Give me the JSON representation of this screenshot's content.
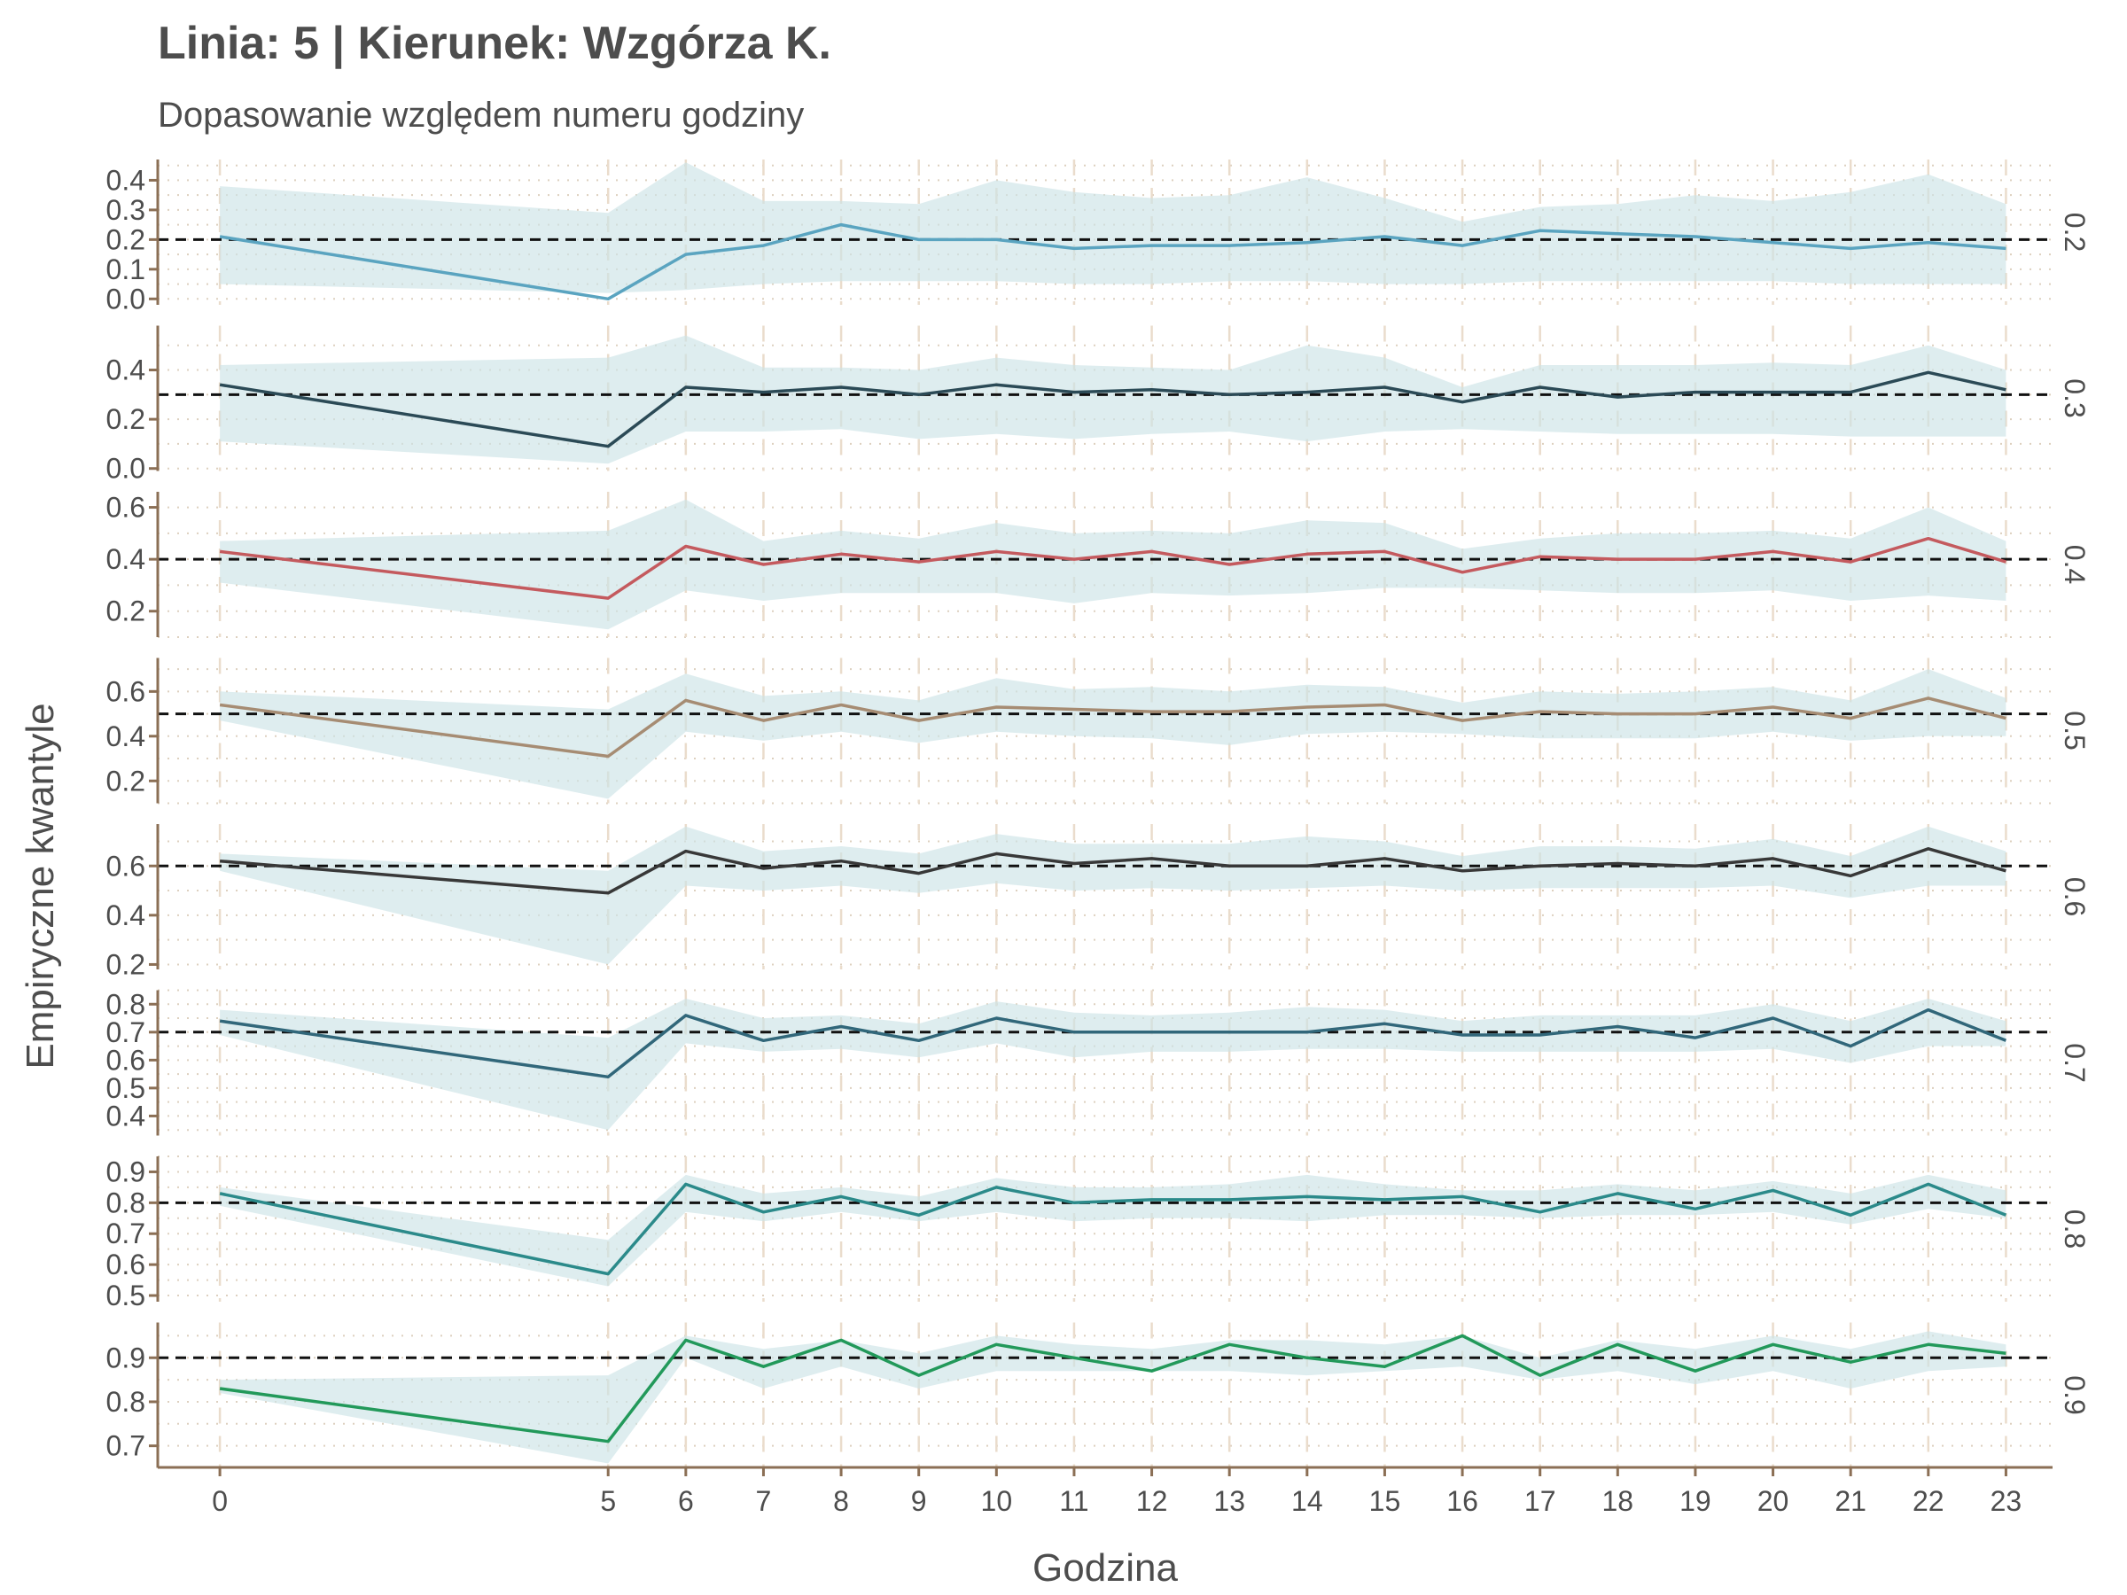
{
  "chart_data": {
    "type": "line",
    "title": "Linia: 5 | Kierunek: Wzgórza K.",
    "subtitle": "Dopasowanie względem numeru godziny",
    "xlabel": "Godzina",
    "ylabel": "Empiryczne kwantyle",
    "x": [
      0,
      5,
      6,
      7,
      8,
      9,
      10,
      11,
      12,
      13,
      14,
      15,
      16,
      17,
      18,
      19,
      20,
      21,
      22,
      23
    ],
    "x_ticks": [
      "0",
      "5",
      "6",
      "7",
      "8",
      "9",
      "10",
      "11",
      "12",
      "13",
      "14",
      "15",
      "16",
      "17",
      "18",
      "19",
      "20",
      "21",
      "22",
      "23"
    ],
    "xlim": [
      -0.8,
      23.6
    ],
    "grid": "dashed x, dotted y",
    "legend": "none",
    "facets": [
      {
        "strip": "0.2",
        "reference": 0.2,
        "color": "#5aa4c0",
        "ylim": [
          -0.02,
          0.47
        ],
        "y_ticks": [
          0.0,
          0.1,
          0.2,
          0.3,
          0.4
        ],
        "y_tick_labels": [
          "0.0",
          "0.1",
          "0.2",
          "0.3",
          "0.4"
        ],
        "values": [
          0.21,
          0.0,
          0.15,
          0.18,
          0.25,
          0.2,
          0.2,
          0.17,
          0.18,
          0.18,
          0.19,
          0.21,
          0.18,
          0.23,
          0.22,
          0.21,
          0.19,
          0.17,
          0.19,
          0.17
        ],
        "lower": [
          0.05,
          0.02,
          0.03,
          0.05,
          0.06,
          0.06,
          0.06,
          0.05,
          0.05,
          0.06,
          0.06,
          0.05,
          0.05,
          0.06,
          0.06,
          0.06,
          0.06,
          0.05,
          0.05,
          0.05
        ],
        "upper": [
          0.38,
          0.29,
          0.46,
          0.33,
          0.33,
          0.32,
          0.4,
          0.36,
          0.34,
          0.35,
          0.41,
          0.34,
          0.26,
          0.31,
          0.32,
          0.35,
          0.33,
          0.36,
          0.42,
          0.32
        ]
      },
      {
        "strip": "0.3",
        "reference": 0.3,
        "color": "#2b4a56",
        "ylim": [
          -0.01,
          0.58
        ],
        "y_ticks": [
          0.0,
          0.2,
          0.4
        ],
        "y_tick_labels": [
          "0.0",
          "0.2",
          "0.4"
        ],
        "values": [
          0.34,
          0.09,
          0.33,
          0.31,
          0.33,
          0.3,
          0.34,
          0.31,
          0.32,
          0.3,
          0.31,
          0.33,
          0.27,
          0.33,
          0.29,
          0.31,
          0.31,
          0.31,
          0.39,
          0.32
        ],
        "lower": [
          0.11,
          0.02,
          0.15,
          0.15,
          0.16,
          0.12,
          0.14,
          0.12,
          0.14,
          0.15,
          0.11,
          0.15,
          0.16,
          0.15,
          0.14,
          0.14,
          0.14,
          0.13,
          0.13,
          0.13
        ],
        "upper": [
          0.42,
          0.45,
          0.54,
          0.41,
          0.41,
          0.4,
          0.45,
          0.42,
          0.41,
          0.4,
          0.5,
          0.45,
          0.33,
          0.42,
          0.42,
          0.42,
          0.43,
          0.42,
          0.5,
          0.4
        ]
      },
      {
        "strip": "0.4",
        "reference": 0.4,
        "color": "#c45a5e",
        "ylim": [
          0.1,
          0.66
        ],
        "y_ticks": [
          0.2,
          0.4,
          0.6
        ],
        "y_tick_labels": [
          "0.2",
          "0.4",
          "0.6"
        ],
        "values": [
          0.43,
          0.25,
          0.45,
          0.38,
          0.42,
          0.39,
          0.43,
          0.4,
          0.43,
          0.38,
          0.42,
          0.43,
          0.35,
          0.41,
          0.4,
          0.4,
          0.43,
          0.39,
          0.48,
          0.39
        ],
        "lower": [
          0.31,
          0.13,
          0.28,
          0.24,
          0.27,
          0.27,
          0.27,
          0.23,
          0.27,
          0.26,
          0.27,
          0.29,
          0.29,
          0.28,
          0.27,
          0.27,
          0.28,
          0.24,
          0.26,
          0.24
        ],
        "upper": [
          0.47,
          0.51,
          0.63,
          0.47,
          0.51,
          0.48,
          0.54,
          0.5,
          0.51,
          0.5,
          0.55,
          0.54,
          0.44,
          0.48,
          0.5,
          0.5,
          0.51,
          0.48,
          0.6,
          0.47
        ]
      },
      {
        "strip": "0.5",
        "reference": 0.5,
        "color": "#a68c73",
        "ylim": [
          0.1,
          0.75
        ],
        "y_ticks": [
          0.2,
          0.4,
          0.6
        ],
        "y_tick_labels": [
          "0.2",
          "0.4",
          "0.6"
        ],
        "values": [
          0.54,
          0.31,
          0.56,
          0.47,
          0.54,
          0.47,
          0.53,
          0.52,
          0.51,
          0.51,
          0.53,
          0.54,
          0.47,
          0.51,
          0.5,
          0.5,
          0.53,
          0.48,
          0.57,
          0.48
        ],
        "lower": [
          0.47,
          0.12,
          0.42,
          0.38,
          0.42,
          0.37,
          0.42,
          0.4,
          0.39,
          0.36,
          0.41,
          0.42,
          0.41,
          0.39,
          0.39,
          0.39,
          0.42,
          0.38,
          0.4,
          0.4
        ],
        "upper": [
          0.6,
          0.52,
          0.68,
          0.58,
          0.6,
          0.56,
          0.66,
          0.61,
          0.62,
          0.6,
          0.63,
          0.62,
          0.55,
          0.6,
          0.59,
          0.6,
          0.62,
          0.56,
          0.7,
          0.57
        ]
      },
      {
        "strip": "0.6",
        "reference": 0.6,
        "color": "#383838",
        "ylim": [
          0.18,
          0.77
        ],
        "y_ticks": [
          0.2,
          0.4,
          0.6
        ],
        "y_tick_labels": [
          "0.2",
          "0.4",
          "0.6"
        ],
        "values": [
          0.62,
          0.49,
          0.66,
          0.59,
          0.62,
          0.57,
          0.65,
          0.61,
          0.63,
          0.6,
          0.6,
          0.63,
          0.58,
          0.6,
          0.61,
          0.6,
          0.63,
          0.56,
          0.67,
          0.58
        ],
        "lower": [
          0.58,
          0.2,
          0.52,
          0.5,
          0.52,
          0.49,
          0.53,
          0.5,
          0.51,
          0.5,
          0.51,
          0.52,
          0.5,
          0.51,
          0.51,
          0.51,
          0.52,
          0.47,
          0.52,
          0.52
        ],
        "upper": [
          0.65,
          0.58,
          0.76,
          0.66,
          0.68,
          0.65,
          0.73,
          0.69,
          0.69,
          0.69,
          0.72,
          0.7,
          0.64,
          0.68,
          0.68,
          0.67,
          0.71,
          0.64,
          0.76,
          0.66
        ]
      },
      {
        "strip": "0.7",
        "reference": 0.7,
        "color": "#31677a",
        "ylim": [
          0.33,
          0.85
        ],
        "y_ticks": [
          0.4,
          0.5,
          0.6,
          0.7,
          0.8
        ],
        "y_tick_labels": [
          "0.4",
          "0.5",
          "0.6",
          "0.7",
          "0.8"
        ],
        "values": [
          0.74,
          0.54,
          0.76,
          0.67,
          0.72,
          0.67,
          0.75,
          0.7,
          0.7,
          0.7,
          0.7,
          0.73,
          0.69,
          0.69,
          0.72,
          0.68,
          0.75,
          0.65,
          0.78,
          0.67
        ],
        "lower": [
          0.69,
          0.35,
          0.66,
          0.63,
          0.64,
          0.61,
          0.66,
          0.61,
          0.63,
          0.63,
          0.64,
          0.64,
          0.63,
          0.63,
          0.63,
          0.63,
          0.64,
          0.59,
          0.65,
          0.65
        ],
        "upper": [
          0.78,
          0.68,
          0.82,
          0.75,
          0.76,
          0.73,
          0.81,
          0.77,
          0.76,
          0.77,
          0.79,
          0.78,
          0.74,
          0.76,
          0.76,
          0.76,
          0.8,
          0.74,
          0.82,
          0.74
        ]
      },
      {
        "strip": "0.8",
        "reference": 0.8,
        "color": "#2b8a8a",
        "ylim": [
          0.48,
          0.95
        ],
        "y_ticks": [
          0.5,
          0.6,
          0.7,
          0.8,
          0.9
        ],
        "y_tick_labels": [
          "0.5",
          "0.6",
          "0.7",
          "0.8",
          "0.9"
        ],
        "values": [
          0.83,
          0.57,
          0.86,
          0.77,
          0.82,
          0.76,
          0.85,
          0.8,
          0.81,
          0.81,
          0.82,
          0.81,
          0.82,
          0.77,
          0.83,
          0.78,
          0.84,
          0.76,
          0.86,
          0.76
        ],
        "lower": [
          0.79,
          0.53,
          0.77,
          0.74,
          0.77,
          0.74,
          0.77,
          0.74,
          0.75,
          0.75,
          0.74,
          0.76,
          0.76,
          0.75,
          0.76,
          0.76,
          0.77,
          0.73,
          0.78,
          0.75
        ],
        "upper": [
          0.85,
          0.68,
          0.89,
          0.83,
          0.85,
          0.82,
          0.88,
          0.85,
          0.85,
          0.86,
          0.89,
          0.86,
          0.84,
          0.84,
          0.86,
          0.84,
          0.87,
          0.83,
          0.89,
          0.84
        ]
      },
      {
        "strip": "0.9",
        "reference": 0.9,
        "color": "#22995a",
        "ylim": [
          0.65,
          0.98
        ],
        "y_ticks": [
          0.7,
          0.8,
          0.9
        ],
        "y_tick_labels": [
          "0.7",
          "0.8",
          "0.9"
        ],
        "values": [
          0.83,
          0.71,
          0.94,
          0.88,
          0.94,
          0.86,
          0.93,
          0.9,
          0.87,
          0.93,
          0.9,
          0.88,
          0.95,
          0.86,
          0.93,
          0.87,
          0.93,
          0.89,
          0.93,
          0.91
        ],
        "lower": [
          0.82,
          0.66,
          0.9,
          0.83,
          0.88,
          0.83,
          0.87,
          0.87,
          0.87,
          0.87,
          0.86,
          0.87,
          0.88,
          0.85,
          0.87,
          0.84,
          0.87,
          0.83,
          0.87,
          0.88
        ],
        "upper": [
          0.85,
          0.86,
          0.95,
          0.92,
          0.94,
          0.91,
          0.95,
          0.93,
          0.92,
          0.94,
          0.94,
          0.93,
          0.95,
          0.9,
          0.94,
          0.92,
          0.95,
          0.92,
          0.96,
          0.93
        ]
      }
    ]
  }
}
